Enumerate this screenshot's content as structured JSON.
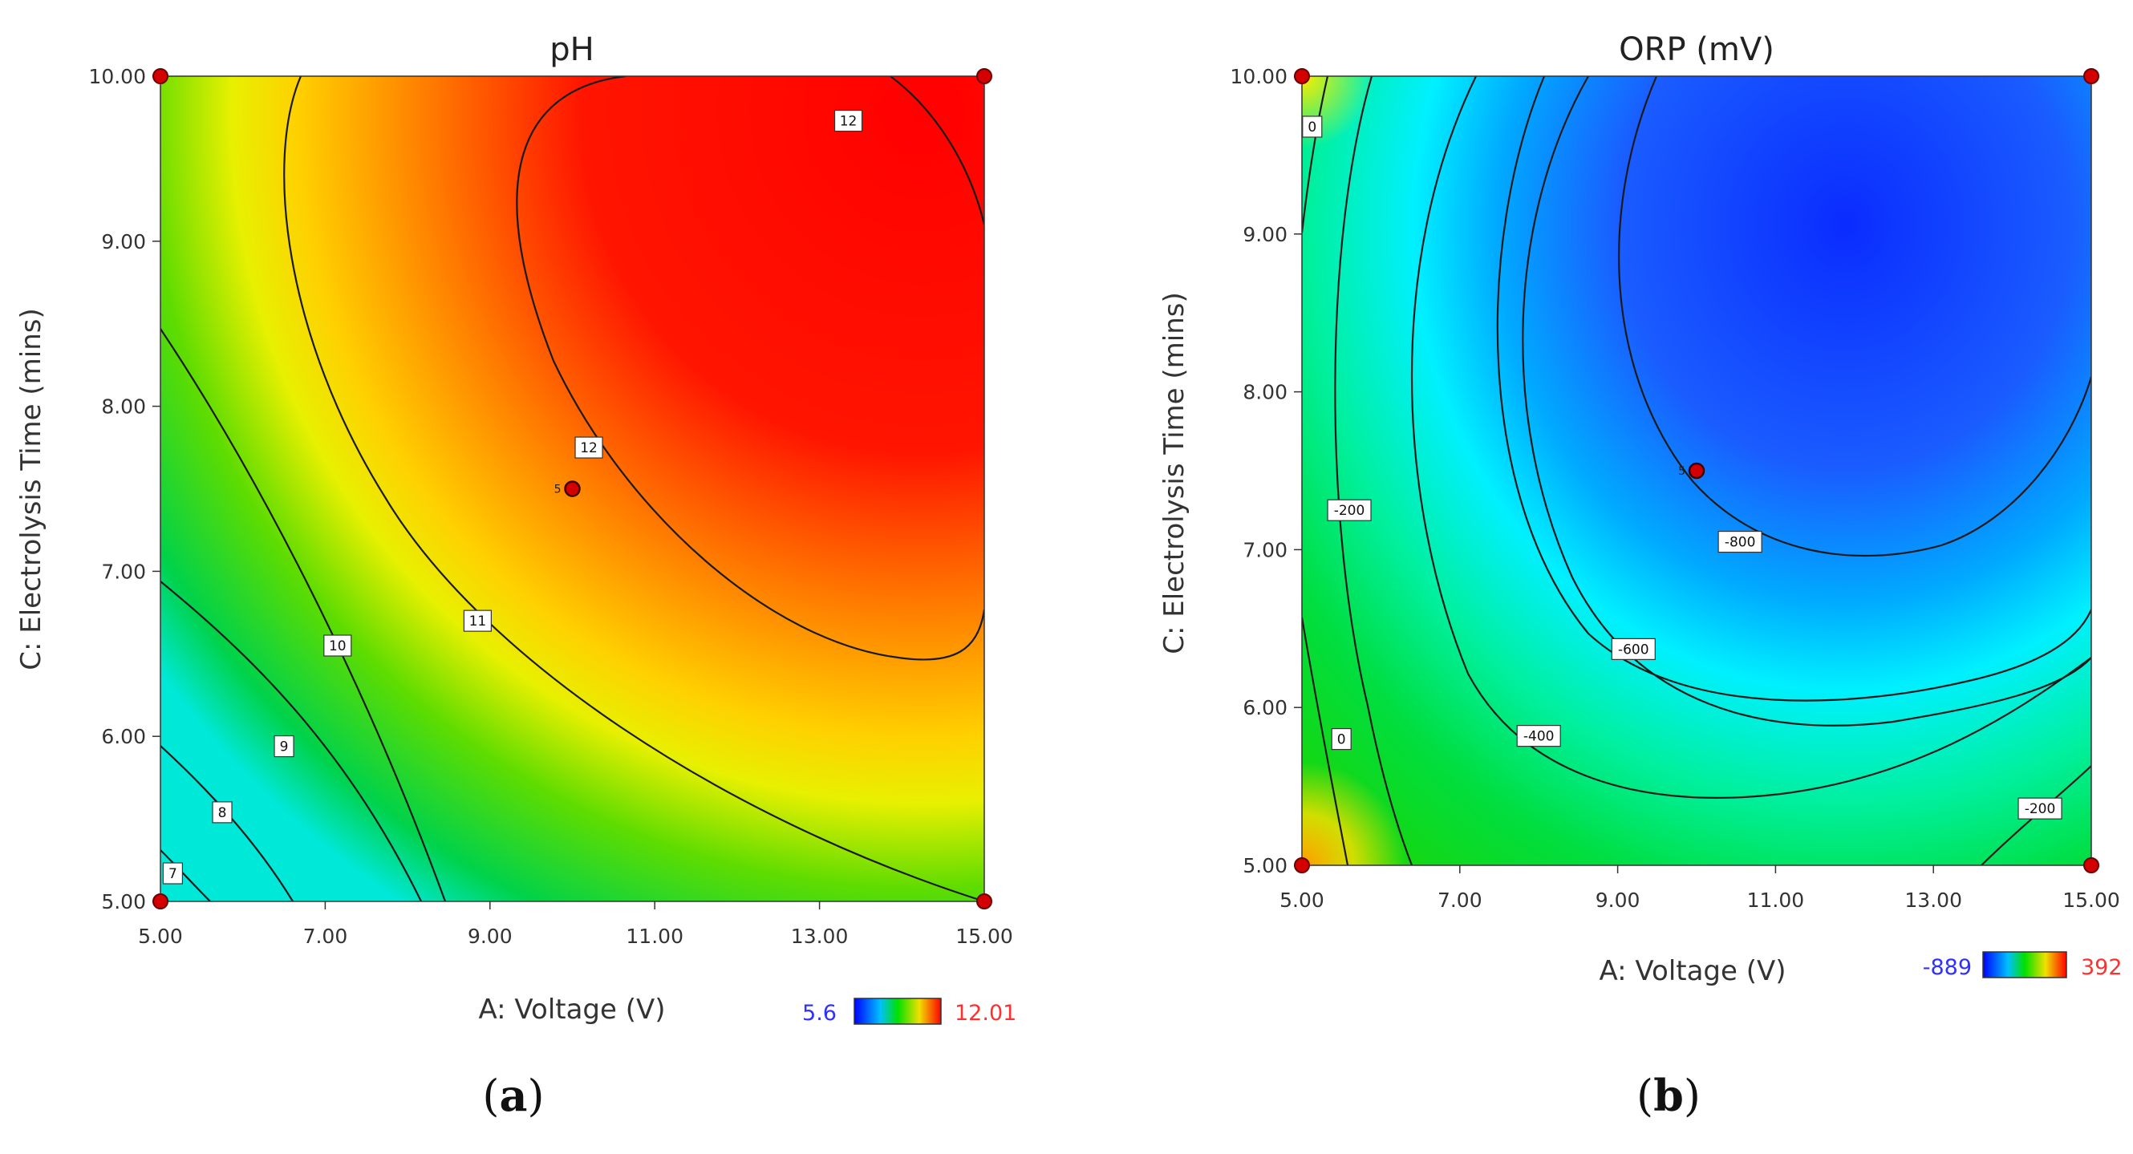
{
  "chart_data": [
    {
      "type": "heatmap",
      "subtype": "contour",
      "panel_caption_open": "(",
      "panel_caption_letter": "a",
      "panel_caption_close": ")",
      "title": "pH",
      "xlabel": "A: Voltage (V)",
      "ylabel": "C: Electrolysis Time (mins)",
      "xlim": [
        5,
        15
      ],
      "ylim": [
        5,
        10
      ],
      "xticks": [
        "5.00",
        "7.00",
        "9.00",
        "11.00",
        "13.00",
        "15.00"
      ],
      "yticks": [
        "5.00",
        "6.00",
        "7.00",
        "8.00",
        "9.00",
        "10.00"
      ],
      "xtick_values": [
        5,
        7,
        9,
        11,
        13,
        15
      ],
      "ytick_values": [
        5,
        6,
        7,
        8,
        9,
        10
      ],
      "colorbar": {
        "min_label": "5.6",
        "max_label": "12.01",
        "min": 5.6,
        "max": 12.01,
        "min_color": "#2020ff",
        "max_color": "#ff3030"
      },
      "contour_levels": [
        "7",
        "8",
        "9",
        "10",
        "11",
        "12",
        "12"
      ],
      "contour_label_points": [
        {
          "text": "7",
          "x": 5.15,
          "y": 5.17
        },
        {
          "text": "8",
          "x": 5.75,
          "y": 5.54
        },
        {
          "text": "9",
          "x": 6.5,
          "y": 5.94
        },
        {
          "text": "10",
          "x": 7.15,
          "y": 6.55
        },
        {
          "text": "11",
          "x": 8.85,
          "y": 6.7
        },
        {
          "text": "12",
          "x": 10.2,
          "y": 7.75
        },
        {
          "text": "12",
          "x": 13.35,
          "y": 9.73
        }
      ],
      "design_points": [
        {
          "x": 5,
          "y": 10
        },
        {
          "x": 15,
          "y": 10
        },
        {
          "x": 5,
          "y": 5
        },
        {
          "x": 15,
          "y": 5
        }
      ],
      "center_point": {
        "x": 10,
        "y": 7.5,
        "label": "5"
      }
    },
    {
      "type": "heatmap",
      "subtype": "contour",
      "panel_caption_open": "(",
      "panel_caption_letter": "b",
      "panel_caption_close": ")",
      "title": "ORP (mV)",
      "xlabel": "A: Voltage (V)",
      "ylabel": "C: Electrolysis Time (mins)",
      "xlim": [
        5,
        15
      ],
      "ylim": [
        5,
        10
      ],
      "xticks": [
        "5.00",
        "7.00",
        "9.00",
        "11.00",
        "13.00",
        "15.00"
      ],
      "yticks": [
        "5.00",
        "6.00",
        "7.00",
        "8.00",
        "9.00",
        "10.00"
      ],
      "xtick_values": [
        5,
        7,
        9,
        11,
        13,
        15
      ],
      "ytick_values": [
        5,
        6,
        7,
        8,
        9,
        10
      ],
      "colorbar": {
        "min_label": "-889",
        "max_label": "392",
        "min": -889,
        "max": 392,
        "min_color": "#2020ff",
        "max_color": "#ff3030"
      },
      "contour_levels": [
        "0",
        "-200",
        "0",
        "-400",
        "-600",
        "-800",
        "-200"
      ],
      "contour_label_points": [
        {
          "text": "0",
          "x": 5.13,
          "y": 9.68
        },
        {
          "text": "-200",
          "x": 5.6,
          "y": 7.25
        },
        {
          "text": "0",
          "x": 5.5,
          "y": 5.8
        },
        {
          "text": "-400",
          "x": 8.0,
          "y": 5.82
        },
        {
          "text": "-600",
          "x": 9.2,
          "y": 6.37
        },
        {
          "text": "-800",
          "x": 10.55,
          "y": 7.05
        },
        {
          "text": "-200",
          "x": 14.35,
          "y": 5.36
        }
      ],
      "design_points": [
        {
          "x": 5,
          "y": 10
        },
        {
          "x": 15,
          "y": 10
        },
        {
          "x": 5,
          "y": 5
        },
        {
          "x": 15,
          "y": 5
        }
      ],
      "center_point": {
        "x": 10,
        "y": 7.5,
        "label": "5"
      }
    }
  ]
}
